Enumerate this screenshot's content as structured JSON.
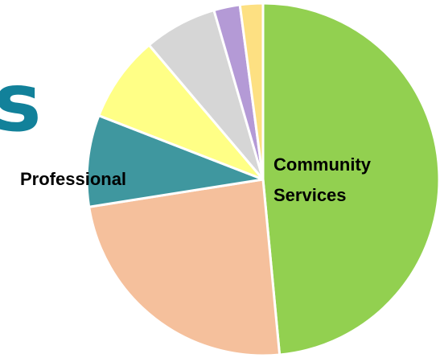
{
  "title_fragment": "s",
  "chart_data": {
    "type": "pie",
    "start_angle_deg": 0,
    "direction": "clockwise",
    "slices": [
      {
        "label": "Community Services",
        "label_lines": [
          "Community",
          "Services"
        ],
        "value": 48.5,
        "color": "#92d050"
      },
      {
        "label": "",
        "value": 24.0,
        "color": "#f5c09c"
      },
      {
        "label": "Professional",
        "label_lines": [
          "Professional"
        ],
        "value": 8.4,
        "color": "#3f979f"
      },
      {
        "label": "",
        "value": 7.9,
        "color": "#ffff86"
      },
      {
        "label": "",
        "value": 6.7,
        "color": "#d6d6d6"
      },
      {
        "label": "",
        "value": 2.4,
        "color": "#b49ad6"
      },
      {
        "label": "",
        "value": 2.1,
        "color": "#fde082"
      }
    ]
  }
}
